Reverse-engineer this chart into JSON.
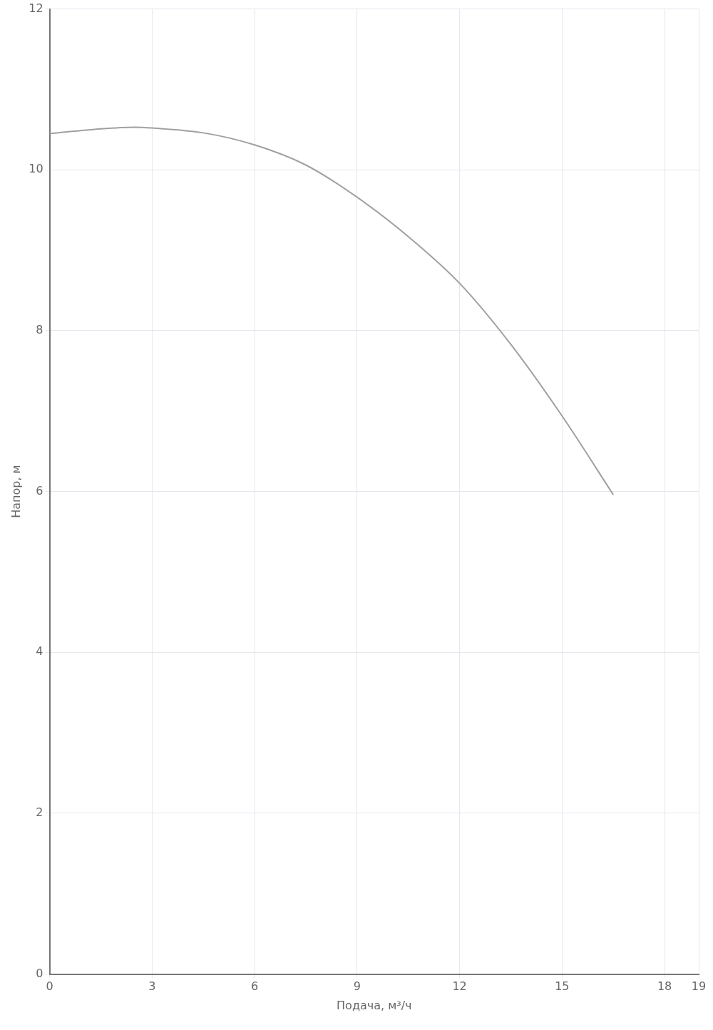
{
  "chart_data": {
    "type": "line",
    "xlabel": "Подача, м³/ч",
    "ylabel": "Напор, м",
    "x": [
      0,
      1.5,
      2.5,
      3,
      4.5,
      6,
      7.5,
      9,
      10.5,
      12,
      13.5,
      15,
      16.5
    ],
    "series": [
      {
        "color": "#a0a0a0",
        "values": [
          10.45,
          10.51,
          10.53,
          10.52,
          10.46,
          10.31,
          10.06,
          9.66,
          9.17,
          8.59,
          7.83,
          6.94,
          5.96
        ]
      }
    ],
    "xlim": [
      0,
      19
    ],
    "xticks": [
      0,
      3,
      6,
      9,
      12,
      15,
      18,
      19
    ],
    "ylim": [
      0,
      12
    ],
    "yticks": [
      0,
      2,
      4,
      6,
      8,
      10,
      12
    ],
    "grid": true,
    "legend": false,
    "marker": "none",
    "line_style": "solid"
  }
}
